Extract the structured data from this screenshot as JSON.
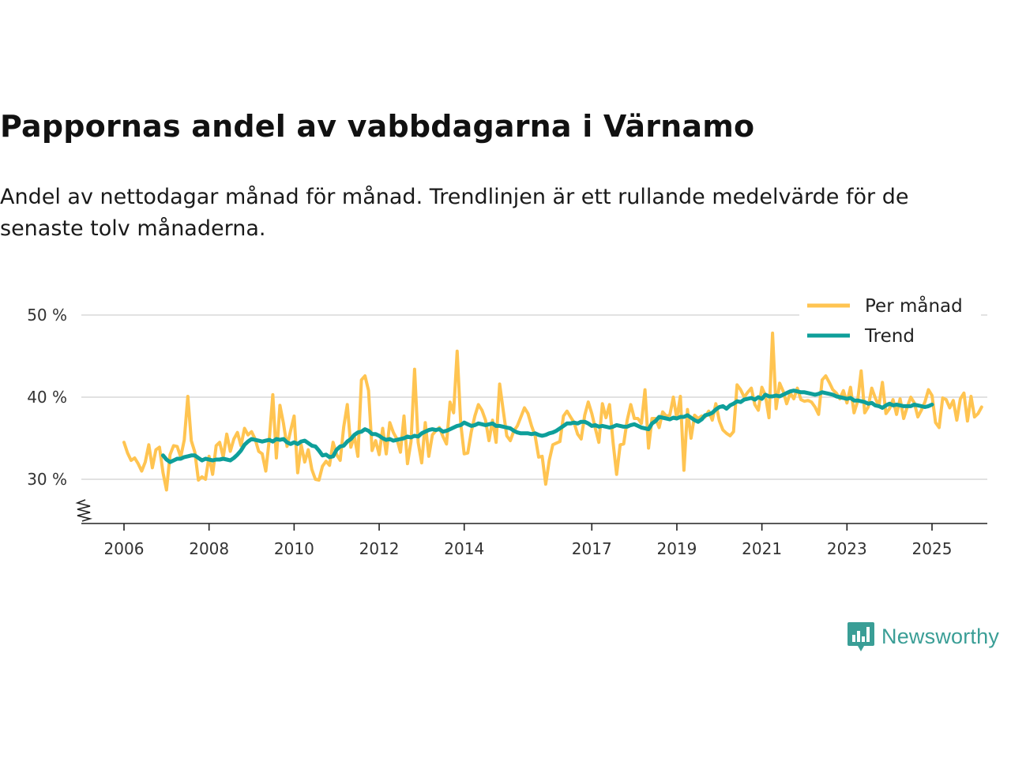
{
  "title": "Pappornas andel av vabbdagarna i Värnamo",
  "subtitle": "Andel av nettodagar månad för månad. Trendlinjen är ett rullande medelvärde för de senaste tolv månaderna.",
  "brand": {
    "name": "Newsworthy",
    "color": "#3a9e96",
    "icon": "bar-chart-speech-bubble-icon"
  },
  "chart_data": {
    "type": "line",
    "xlabel": "",
    "ylabel": "",
    "x_range": [
      2006,
      2025.6
    ],
    "ylim": [
      25,
      51
    ],
    "y_ticks": [
      30,
      40,
      50
    ],
    "y_tick_labels": [
      "30 %",
      "40 %",
      "50 %"
    ],
    "x_ticks": [
      2006,
      2008,
      2010,
      2012,
      2014,
      2017,
      2019,
      2021,
      2023,
      2025
    ],
    "x_tick_labels": [
      "2006",
      "2008",
      "2010",
      "2012",
      "2014",
      "2017",
      "2019",
      "2021",
      "2023",
      "2025"
    ],
    "grid": true,
    "axis_break": true,
    "legend_position": "top-right",
    "start": 2006.0,
    "step_months": 1,
    "series": [
      {
        "name": "Per månad",
        "color": "#ffc451",
        "values": [
          34.5,
          33.2,
          32.3,
          32.6,
          31.9,
          31.0,
          32.1,
          34.2,
          31.4,
          33.6,
          33.9,
          30.8,
          28.7,
          33.0,
          34.1,
          34.0,
          32.7,
          34.8,
          40.1,
          34.7,
          33.3,
          29.9,
          30.3,
          30.0,
          32.8,
          30.6,
          34.1,
          34.5,
          32.7,
          35.5,
          33.4,
          34.9,
          35.7,
          34.1,
          36.2,
          35.4,
          35.8,
          34.9,
          33.4,
          33.1,
          31.0,
          34.9,
          40.3,
          32.6,
          39.0,
          36.8,
          34.0,
          35.9,
          37.7,
          30.8,
          34.2,
          32.1,
          33.6,
          31.2,
          30.0,
          29.9,
          31.6,
          32.2,
          31.7,
          34.5,
          33.0,
          32.3,
          36.4,
          39.1,
          33.9,
          35.3,
          32.8,
          42.1,
          42.6,
          40.8,
          33.5,
          34.7,
          33.0,
          36.2,
          33.1,
          36.9,
          35.7,
          34.9,
          33.3,
          37.7,
          31.9,
          34.6,
          43.4,
          34.5,
          32.0,
          36.9,
          32.8,
          35.4,
          35.9,
          36.3,
          35.2,
          34.3,
          39.4,
          38.1,
          45.6,
          36.8,
          33.1,
          33.2,
          35.8,
          37.7,
          39.1,
          38.4,
          37.2,
          34.7,
          37.2,
          34.5,
          41.6,
          38.4,
          35.3,
          34.7,
          35.9,
          36.5,
          37.6,
          38.7,
          38.0,
          36.5,
          35.3,
          32.7,
          32.8,
          29.4,
          32.3,
          34.2,
          34.4,
          34.6,
          37.7,
          38.3,
          37.6,
          36.9,
          35.5,
          34.9,
          37.8,
          39.4,
          38.0,
          36.2,
          34.5,
          39.2,
          37.5,
          39.1,
          34.5,
          30.6,
          34.2,
          34.3,
          37.2,
          39.1,
          37.4,
          37.4,
          36.8,
          40.9,
          33.8,
          37.4,
          37.4,
          36.3,
          38.2,
          37.7,
          37.8,
          40.0,
          37.4,
          40.1,
          31.1,
          38.5,
          35.0,
          37.8,
          37.4,
          37.7,
          37.6,
          38.3,
          37.2,
          39.2,
          37.1,
          36.0,
          35.6,
          35.3,
          35.8,
          41.5,
          40.9,
          40.0,
          40.6,
          41.1,
          39.1,
          38.4,
          41.2,
          40.2,
          37.5,
          47.8,
          38.6,
          41.7,
          40.7,
          39.2,
          40.5,
          39.8,
          41.1,
          39.7,
          39.5,
          39.6,
          39.4,
          38.8,
          37.9,
          42.1,
          42.6,
          41.8,
          40.9,
          40.5,
          39.8,
          40.8,
          39.3,
          41.2,
          38.1,
          39.5,
          43.2,
          38.1,
          38.8,
          41.1,
          39.9,
          38.9,
          41.8,
          38.0,
          38.6,
          39.7,
          37.9,
          39.8,
          37.4,
          38.8,
          40.0,
          39.3,
          37.6,
          38.4,
          39.4,
          40.9,
          40.2,
          36.9,
          36.3,
          39.9,
          39.7,
          38.7,
          39.6,
          37.2,
          39.8,
          40.5,
          37.1,
          40.1,
          37.6,
          38.0,
          38.8
        ]
      },
      {
        "name": "Trend",
        "color": "#0e9f9a",
        "values": [
          null,
          null,
          null,
          null,
          null,
          null,
          null,
          null,
          null,
          null,
          null,
          32.9,
          32.4,
          32.1,
          32.3,
          32.5,
          32.5,
          32.7,
          32.8,
          32.9,
          32.9,
          32.6,
          32.3,
          32.5,
          32.4,
          32.3,
          32.4,
          32.4,
          32.5,
          32.4,
          32.3,
          32.6,
          33.0,
          33.5,
          34.2,
          34.6,
          34.9,
          34.8,
          34.7,
          34.6,
          34.7,
          34.8,
          34.6,
          34.9,
          34.8,
          34.9,
          34.5,
          34.3,
          34.5,
          34.3,
          34.6,
          34.7,
          34.4,
          34.1,
          34.0,
          33.5,
          32.9,
          33.0,
          32.7,
          32.8,
          33.6,
          34.0,
          34.1,
          34.6,
          34.9,
          35.4,
          35.7,
          35.8,
          36.1,
          35.9,
          35.5,
          35.5,
          35.3,
          35.0,
          34.8,
          34.9,
          34.7,
          34.8,
          34.9,
          35.0,
          35.2,
          35.1,
          35.3,
          35.2,
          35.6,
          35.8,
          36.0,
          36.1,
          36.0,
          36.1,
          35.8,
          35.9,
          36.1,
          36.3,
          36.5,
          36.6,
          36.9,
          36.7,
          36.5,
          36.6,
          36.8,
          36.7,
          36.6,
          36.7,
          36.8,
          36.5,
          36.5,
          36.4,
          36.3,
          36.2,
          35.9,
          35.7,
          35.6,
          35.6,
          35.6,
          35.5,
          35.6,
          35.4,
          35.3,
          35.4,
          35.6,
          35.7,
          35.9,
          36.2,
          36.5,
          36.8,
          36.8,
          36.9,
          36.8,
          37.0,
          37.0,
          36.8,
          36.5,
          36.6,
          36.4,
          36.5,
          36.4,
          36.3,
          36.4,
          36.6,
          36.5,
          36.4,
          36.4,
          36.6,
          36.7,
          36.5,
          36.3,
          36.2,
          36.1,
          36.8,
          37.1,
          37.6,
          37.5,
          37.4,
          37.3,
          37.5,
          37.4,
          37.6,
          37.6,
          37.8,
          37.5,
          37.2,
          37.0,
          37.3,
          37.8,
          37.9,
          38.1,
          38.5,
          38.8,
          38.9,
          38.6,
          39.0,
          39.2,
          39.5,
          39.4,
          39.7,
          39.8,
          39.9,
          39.7,
          40.0,
          39.8,
          40.3,
          40.1,
          40.1,
          40.2,
          40.1,
          40.3,
          40.5,
          40.7,
          40.8,
          40.7,
          40.6,
          40.6,
          40.5,
          40.4,
          40.3,
          40.4,
          40.6,
          40.5,
          40.4,
          40.3,
          40.1,
          40.0,
          39.9,
          39.8,
          39.9,
          39.6,
          39.6,
          39.5,
          39.4,
          39.2,
          39.3,
          39.0,
          38.9,
          38.7,
          39.0,
          39.2,
          39.0,
          39.1,
          39.0,
          38.9,
          38.9,
          38.9,
          39.1,
          39.0,
          38.9,
          38.8,
          38.9,
          39.1
        ]
      }
    ]
  }
}
